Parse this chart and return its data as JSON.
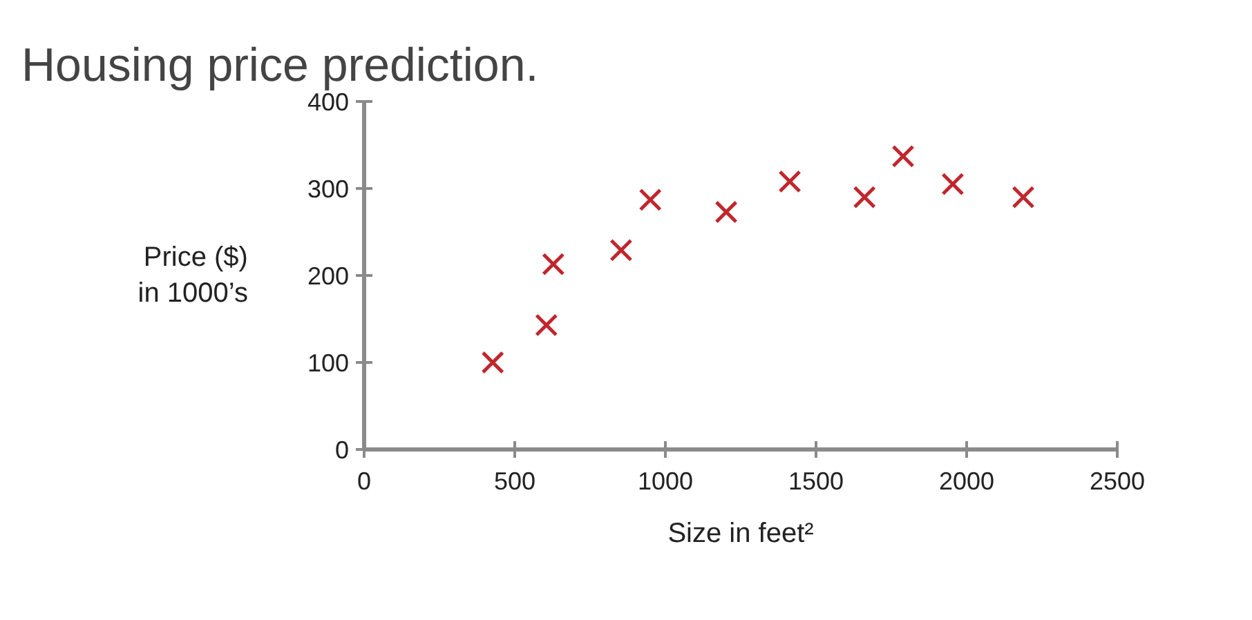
{
  "chart_data": {
    "type": "scatter",
    "title": "Housing price prediction.",
    "xlabel": "Size in feet²",
    "ylabel": "Price ($)\nin 1000’s",
    "x": [
      427,
      605,
      628,
      853,
      950,
      1202,
      1413,
      1661,
      1789,
      1954,
      2188
    ],
    "series": [
      {
        "color": "#c0272d",
        "values": [
          100,
          143,
          213,
          229,
          287,
          273,
          308,
          290,
          337,
          305,
          290
        ]
      }
    ],
    "xlim": [
      0,
      2500
    ],
    "ylim": [
      0,
      400
    ],
    "xticks": [
      0,
      500,
      1000,
      1500,
      2000,
      2500
    ],
    "yticks": [
      0,
      100,
      200,
      300,
      400
    ],
    "marker": "cross",
    "grid": false
  }
}
